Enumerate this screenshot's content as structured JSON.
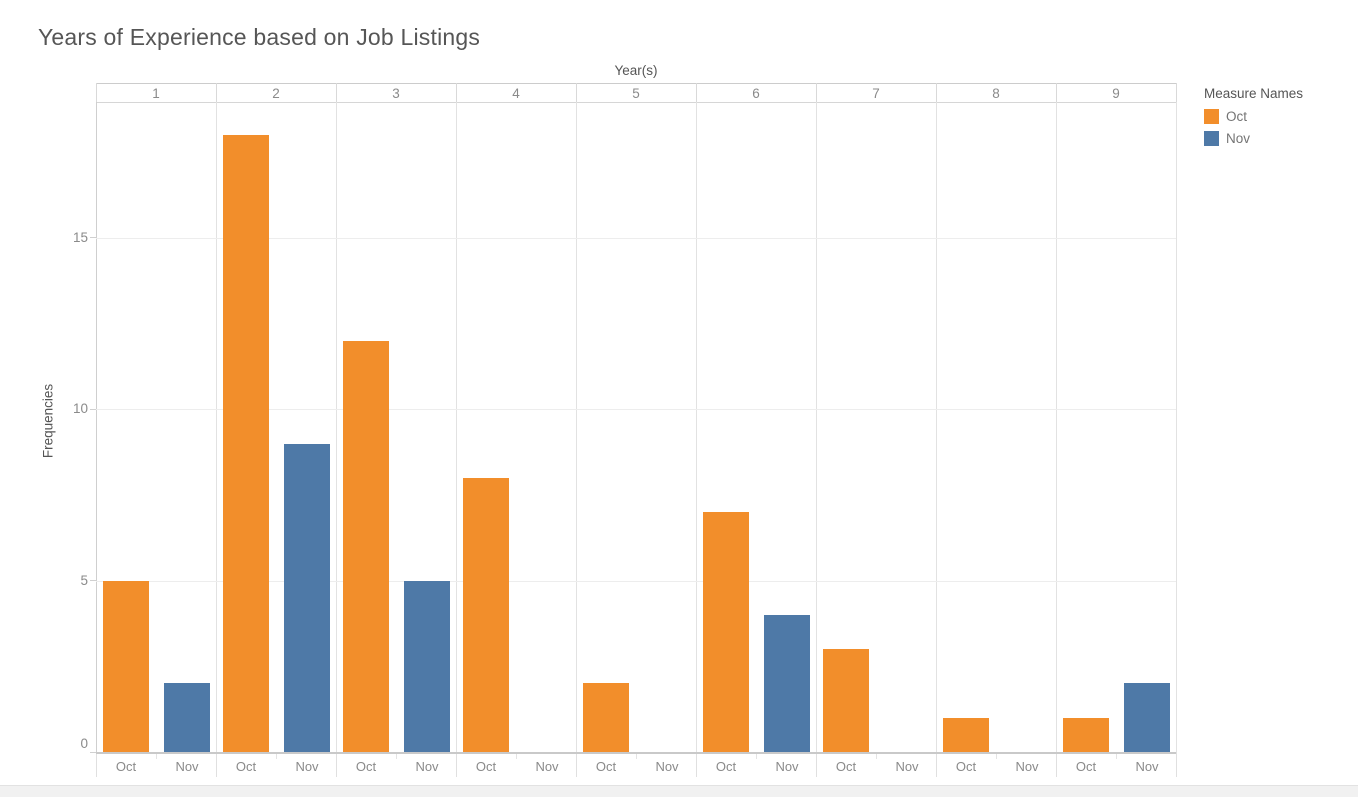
{
  "chart_data": {
    "type": "bar",
    "title": "Years of Experience based on Job Listings",
    "xlabel": "Year(s)",
    "ylabel": "Frequencies",
    "categories": [
      "1",
      "2",
      "3",
      "4",
      "5",
      "6",
      "7",
      "8",
      "9"
    ],
    "series": [
      {
        "name": "Oct",
        "color": "#F28E2B",
        "values": [
          5,
          18,
          12,
          8,
          2,
          7,
          3,
          1,
          1
        ]
      },
      {
        "name": "Nov",
        "color": "#4E79A7",
        "values": [
          2,
          9,
          5,
          0,
          0,
          4,
          0,
          0,
          2
        ]
      }
    ],
    "y_ticks": [
      0,
      5,
      10,
      15
    ],
    "ylim": [
      0,
      19
    ],
    "grid": "on",
    "legend": {
      "title": "Measure Names",
      "position": "top-right",
      "items": [
        {
          "label": "Oct",
          "color": "#F28E2B"
        },
        {
          "label": "Nov",
          "color": "#4E79A7"
        }
      ]
    }
  }
}
